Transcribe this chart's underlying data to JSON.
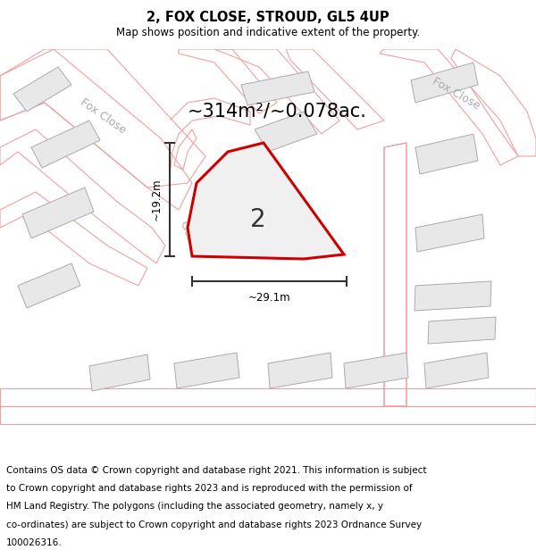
{
  "title": "2, FOX CLOSE, STROUD, GL5 4UP",
  "subtitle": "Map shows position and indicative extent of the property.",
  "area_metric": "~314m²/~0.078ac.",
  "dim_width": "~29.1m",
  "dim_height": "~19.2m",
  "label_number": "2",
  "map_bg": "#ffffff",
  "building_fill": "#e8e8e8",
  "building_stroke": "#aaaaaa",
  "road_outline_color": "#f0a0a0",
  "plot_fill": "#f0f0f0",
  "plot_stroke": "#cc0000",
  "dim_color": "#333333",
  "road_label_color": "#aaaaaa",
  "footer_lines": [
    "Contains OS data © Crown copyright and database right 2021. This information is subject",
    "to Crown copyright and database rights 2023 and is reproduced with the permission of",
    "HM Land Registry. The polygons (including the associated geometry, namely x, y",
    "co-ordinates) are subject to Crown copyright and database rights 2023 Ordnance Survey",
    "100026316."
  ],
  "title_fontsize": 10.5,
  "subtitle_fontsize": 8.5,
  "footer_fontsize": 7.5,
  "area_fontsize": 15
}
